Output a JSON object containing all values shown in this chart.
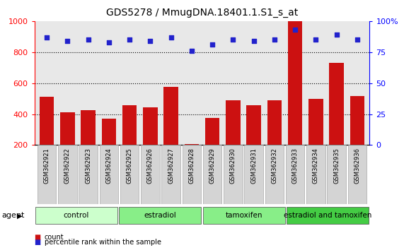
{
  "title": "GDS5278 / MmugDNA.18401.1.S1_s_at",
  "samples": [
    "GSM362921",
    "GSM362922",
    "GSM362923",
    "GSM362924",
    "GSM362925",
    "GSM362926",
    "GSM362927",
    "GSM362928",
    "GSM362929",
    "GSM362930",
    "GSM362931",
    "GSM362932",
    "GSM362933",
    "GSM362934",
    "GSM362935",
    "GSM362936"
  ],
  "counts": [
    510,
    410,
    425,
    370,
    455,
    445,
    575,
    205,
    375,
    490,
    455,
    490,
    1000,
    500,
    730,
    515
  ],
  "percentiles": [
    87,
    84,
    85,
    83,
    85,
    84,
    87,
    76,
    81,
    85,
    84,
    85,
    93,
    85,
    89,
    85
  ],
  "groups": [
    {
      "label": "control",
      "start": 0,
      "end": 4,
      "color": "#ccffcc"
    },
    {
      "label": "estradiol",
      "start": 4,
      "end": 8,
      "color": "#88ee88"
    },
    {
      "label": "tamoxifen",
      "start": 8,
      "end": 12,
      "color": "#88ee88"
    },
    {
      "label": "estradiol and tamoxifen",
      "start": 12,
      "end": 16,
      "color": "#44cc44"
    }
  ],
  "bar_color": "#cc1111",
  "dot_color": "#2222cc",
  "left_ylim": [
    200,
    1000
  ],
  "left_yticks": [
    200,
    400,
    600,
    800,
    1000
  ],
  "right_ylim": [
    0,
    100
  ],
  "right_yticks": [
    0,
    25,
    50,
    75,
    100
  ],
  "right_yticklabels": [
    "0",
    "25",
    "50",
    "75",
    "100%"
  ],
  "bg_plot": "#e8e8e8",
  "bg_fig": "#ffffff",
  "title_fontsize": 10,
  "group_label_fontsize": 7.5,
  "tick_label_fontsize": 6,
  "legend_fontsize": 7,
  "agent_fontsize": 8
}
